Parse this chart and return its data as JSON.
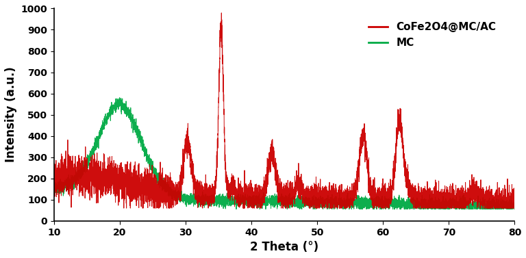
{
  "xlabel": "2 Theta (°)",
  "ylabel": "Intensity (a.u.)",
  "xlim": [
    10,
    80
  ],
  "ylim": [
    0,
    1000
  ],
  "yticks": [
    0,
    100,
    200,
    300,
    400,
    500,
    600,
    700,
    800,
    900,
    1000
  ],
  "xticks": [
    10,
    20,
    30,
    40,
    50,
    60,
    70,
    80
  ],
  "red_color": "#cc0000",
  "green_color": "#00aa44",
  "legend_label_red": "CoFe2O4@MC/AC",
  "legend_label_green": "MC",
  "background_color": "#ffffff",
  "seed": 42
}
